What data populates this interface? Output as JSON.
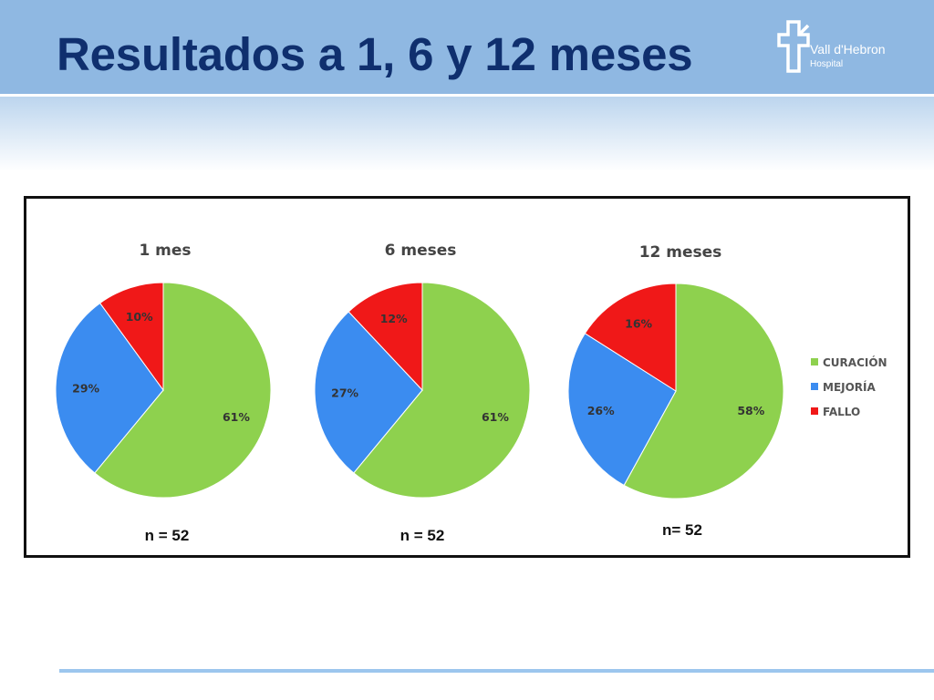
{
  "slide": {
    "title": "Resultados a 1, 6 y 12 meses"
  },
  "logo": {
    "name": "Vall d'Hebron",
    "sub": "Hospital",
    "icon": "hospital-cross-icon"
  },
  "colors": {
    "CURACIÓN": "#8ed14e",
    "MEJORÍA": "#3b8cf0",
    "FALLO": "#f01818",
    "title": "#0f2f6e",
    "header_band": "#8fb8e2"
  },
  "chart_data": [
    {
      "type": "pie",
      "title": "1 mes",
      "categories": [
        "CURACIÓN",
        "MEJORÍA",
        "FALLO"
      ],
      "values": [
        61,
        29,
        10
      ],
      "labels": [
        "61%",
        "29%",
        "10%"
      ],
      "n_label": "n = 52"
    },
    {
      "type": "pie",
      "title": "6 meses",
      "categories": [
        "CURACIÓN",
        "MEJORÍA",
        "FALLO"
      ],
      "values": [
        61,
        27,
        12
      ],
      "labels": [
        "61%",
        "27%",
        "12%"
      ],
      "n_label": "n = 52"
    },
    {
      "type": "pie",
      "title": "12 meses",
      "categories": [
        "CURACIÓN",
        "MEJORÍA",
        "FALLO"
      ],
      "values": [
        58,
        26,
        16
      ],
      "labels": [
        "58%",
        "26%",
        "16%"
      ],
      "n_label": "n= 52"
    }
  ],
  "legend": {
    "placement": "right",
    "entries": [
      "CURACIÓN",
      "MEJORÍA",
      "FALLO"
    ]
  }
}
